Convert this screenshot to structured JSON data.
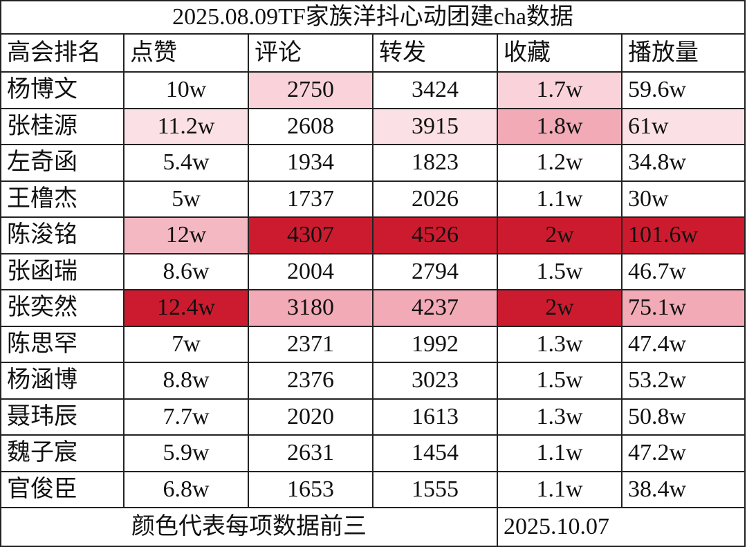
{
  "title": "2025.08.09TF家族洋抖心动团建cha数据",
  "table": {
    "header": [
      "高会排名",
      "点赞",
      "评论",
      "转发",
      "收藏",
      "播放量"
    ],
    "rows": [
      [
        "杨博文",
        "10w",
        {
          "text": "2750",
          "fill": "#f9d3d9"
        },
        "3424",
        {
          "text": "1.7w",
          "fill": "#f9d3d9"
        },
        "59.6w"
      ],
      [
        "张桂源",
        {
          "text": "11.2w",
          "fill": "#fbe1e5"
        },
        "2608",
        {
          "text": "3915",
          "fill": "#fbe1e5"
        },
        {
          "text": "1.8w",
          "fill": "#f1aab6"
        },
        {
          "text": "61w",
          "fill": "#fbe1e5"
        }
      ],
      [
        "左奇函",
        "5.4w",
        "1934",
        "1823",
        "1.2w",
        "34.8w"
      ],
      [
        "王橹杰",
        "5w",
        "1737",
        "2026",
        "1.1w",
        "30w"
      ],
      [
        "陈浚铭",
        {
          "text": "12w",
          "fill": "#f4b8c2"
        },
        {
          "text": "4307",
          "fill": "#cc1b2f"
        },
        {
          "text": "4526",
          "fill": "#cc1b2f"
        },
        {
          "text": "2w",
          "fill": "#cc1b2f"
        },
        {
          "text": "101.6w",
          "fill": "#cc1b2f"
        }
      ],
      [
        "张函瑞",
        "8.6w",
        "2004",
        "2794",
        "1.5w",
        "46.7w"
      ],
      [
        "张奕然",
        {
          "text": "12.4w",
          "fill": "#cc1b2f"
        },
        {
          "text": "3180",
          "fill": "#f1aab6"
        },
        {
          "text": "4237",
          "fill": "#f1aab6"
        },
        {
          "text": "2w",
          "fill": "#cc1b2f"
        },
        {
          "text": "75.1w",
          "fill": "#f1aab6"
        }
      ],
      [
        "陈思罕",
        "7w",
        "2371",
        "1992",
        "1.3w",
        "47.4w"
      ],
      [
        "杨涵博",
        "8.8w",
        "2376",
        "3023",
        "1.5w",
        "53.2w"
      ],
      [
        "聂玮辰",
        "7.7w",
        "2020",
        "1613",
        "1.3w",
        "50.8w"
      ],
      [
        "魏子宸",
        "5.9w",
        "2631",
        "1454",
        "1.1w",
        "47.2w"
      ],
      [
        "官俊臣",
        "6.8w",
        "1653",
        "1555",
        "1.1w",
        "38.4w"
      ]
    ]
  },
  "footer": {
    "note": "颜色代表每项数据前三",
    "date": "2025.10.07"
  }
}
